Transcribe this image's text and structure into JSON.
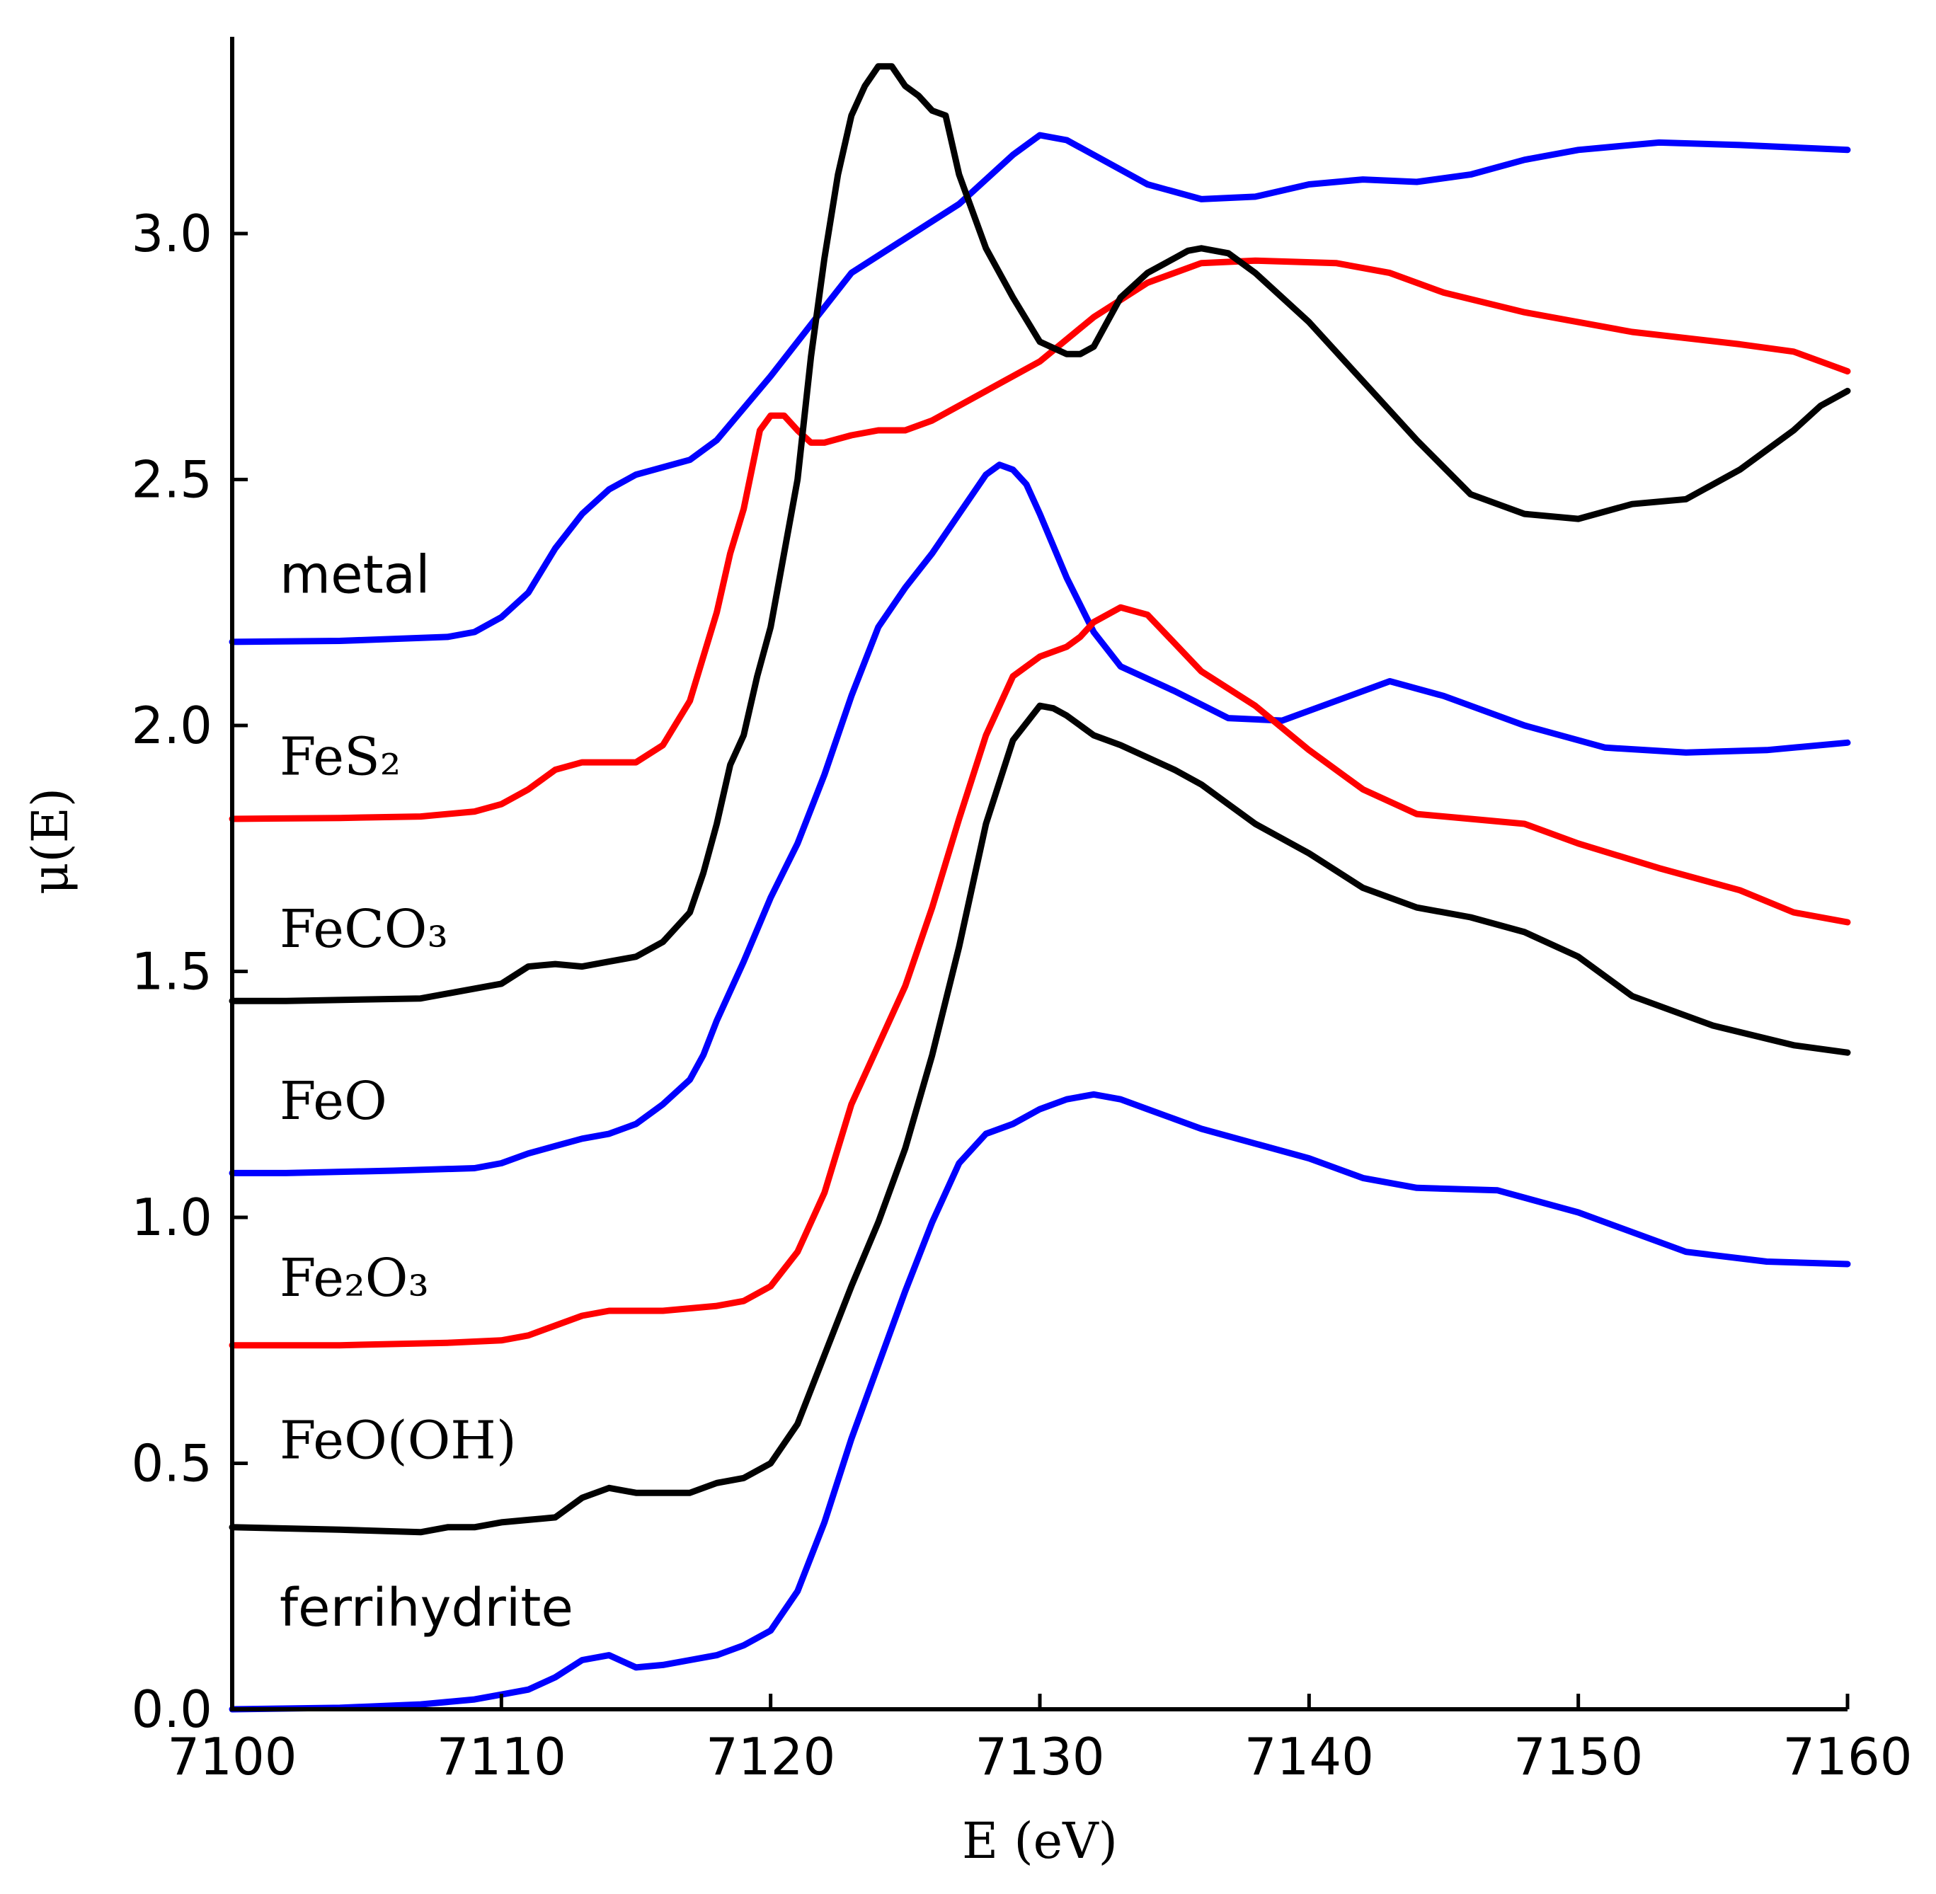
{
  "chart_data": {
    "type": "line",
    "xlabel": "E (eV)",
    "ylabel": "μ(E)",
    "xlim": [
      7100,
      7160
    ],
    "ylim": [
      0,
      3.4
    ],
    "xticks": [
      7100,
      7110,
      7120,
      7130,
      7140,
      7150,
      7160
    ],
    "yticks": [
      0.0,
      0.5,
      1.0,
      1.5,
      2.0,
      2.5,
      3.0
    ],
    "xtick_labels": [
      "7100",
      "7110",
      "7120",
      "7130",
      "7140",
      "7150",
      "7160"
    ],
    "ytick_labels": [
      "0.0",
      "0.5",
      "1.0",
      "1.5",
      "2.0",
      "2.5",
      "3.0"
    ],
    "grid": false,
    "legend": "none",
    "series": [
      {
        "name": "metal",
        "color": "#0000ff",
        "label_font": "sans",
        "label_y": 2.27,
        "points": [
          [
            7100,
            2.17
          ],
          [
            7104,
            2.172
          ],
          [
            7108,
            2.18
          ],
          [
            7109,
            2.19
          ],
          [
            7110,
            2.22
          ],
          [
            7111,
            2.27
          ],
          [
            7112,
            2.36
          ],
          [
            7113,
            2.43
          ],
          [
            7114,
            2.48
          ],
          [
            7115,
            2.51
          ],
          [
            7117,
            2.54
          ],
          [
            7118,
            2.58
          ],
          [
            7120,
            2.71
          ],
          [
            7122,
            2.85
          ],
          [
            7123,
            2.92
          ],
          [
            7125,
            2.99
          ],
          [
            7127,
            3.06
          ],
          [
            7129,
            3.16
          ],
          [
            7130,
            3.2
          ],
          [
            7131,
            3.19
          ],
          [
            7132,
            3.16
          ],
          [
            7134,
            3.1
          ],
          [
            7136,
            3.07
          ],
          [
            7138,
            3.075
          ],
          [
            7140,
            3.1
          ],
          [
            7142,
            3.11
          ],
          [
            7144,
            3.105
          ],
          [
            7146,
            3.12
          ],
          [
            7148,
            3.15
          ],
          [
            7150,
            3.17
          ],
          [
            7153,
            3.185
          ],
          [
            7156,
            3.18
          ],
          [
            7160,
            3.17
          ]
        ]
      },
      {
        "name": "FeS₂",
        "color": "#ff0000",
        "label_font": "serif",
        "label_y": 1.9,
        "points": [
          [
            7100,
            1.81
          ],
          [
            7104,
            1.812
          ],
          [
            7107,
            1.815
          ],
          [
            7109,
            1.825
          ],
          [
            7110,
            1.84
          ],
          [
            7111,
            1.87
          ],
          [
            7112,
            1.91
          ],
          [
            7113,
            1.925
          ],
          [
            7115,
            1.925
          ],
          [
            7116,
            1.96
          ],
          [
            7117,
            2.05
          ],
          [
            7118,
            2.23
          ],
          [
            7118.5,
            2.35
          ],
          [
            7119,
            2.44
          ],
          [
            7119.6,
            2.6
          ],
          [
            7120,
            2.63
          ],
          [
            7120.5,
            2.63
          ],
          [
            7121,
            2.6
          ],
          [
            7121.5,
            2.575
          ],
          [
            7122,
            2.575
          ],
          [
            7123,
            2.59
          ],
          [
            7124,
            2.6
          ],
          [
            7125,
            2.6
          ],
          [
            7126,
            2.62
          ],
          [
            7128,
            2.68
          ],
          [
            7130,
            2.74
          ],
          [
            7132,
            2.83
          ],
          [
            7134,
            2.9
          ],
          [
            7136,
            2.94
          ],
          [
            7138,
            2.945
          ],
          [
            7141,
            2.94
          ],
          [
            7143,
            2.92
          ],
          [
            7145,
            2.88
          ],
          [
            7148,
            2.84
          ],
          [
            7152,
            2.8
          ],
          [
            7156,
            2.775
          ],
          [
            7158,
            2.76
          ],
          [
            7160,
            2.72
          ]
        ]
      },
      {
        "name": "FeCO₃",
        "color": "#000000",
        "label_font": "serif",
        "label_y": 1.55,
        "points": [
          [
            7100,
            1.44
          ],
          [
            7102,
            1.44
          ],
          [
            7107,
            1.445
          ],
          [
            7110,
            1.475
          ],
          [
            7111,
            1.51
          ],
          [
            7112,
            1.515
          ],
          [
            7113,
            1.51
          ],
          [
            7114,
            1.52
          ],
          [
            7115,
            1.53
          ],
          [
            7116,
            1.56
          ],
          [
            7117,
            1.62
          ],
          [
            7117.5,
            1.7
          ],
          [
            7118,
            1.8
          ],
          [
            7118.5,
            1.92
          ],
          [
            7119,
            1.98
          ],
          [
            7119.5,
            2.1
          ],
          [
            7120,
            2.2
          ],
          [
            7121,
            2.5
          ],
          [
            7121.5,
            2.75
          ],
          [
            7122,
            2.95
          ],
          [
            7122.5,
            3.12
          ],
          [
            7123,
            3.24
          ],
          [
            7123.5,
            3.3
          ],
          [
            7124,
            3.34
          ],
          [
            7124.5,
            3.34
          ],
          [
            7125,
            3.3
          ],
          [
            7125.5,
            3.28
          ],
          [
            7126,
            3.25
          ],
          [
            7126.5,
            3.24
          ],
          [
            7127,
            3.12
          ],
          [
            7128,
            2.97
          ],
          [
            7129,
            2.87
          ],
          [
            7130,
            2.78
          ],
          [
            7131,
            2.755
          ],
          [
            7131.5,
            2.755
          ],
          [
            7132,
            2.77
          ],
          [
            7133,
            2.87
          ],
          [
            7134,
            2.92
          ],
          [
            7135,
            2.95
          ],
          [
            7135.5,
            2.965
          ],
          [
            7136,
            2.97
          ],
          [
            7137,
            2.96
          ],
          [
            7138,
            2.92
          ],
          [
            7140,
            2.82
          ],
          [
            7142,
            2.7
          ],
          [
            7144,
            2.58
          ],
          [
            7146,
            2.47
          ],
          [
            7148,
            2.43
          ],
          [
            7150,
            2.42
          ],
          [
            7152,
            2.45
          ],
          [
            7154,
            2.46
          ],
          [
            7156,
            2.52
          ],
          [
            7158,
            2.6
          ],
          [
            7159,
            2.65
          ],
          [
            7160,
            2.68
          ]
        ]
      },
      {
        "name": "FeO",
        "color": "#0000ff",
        "label_font": "serif",
        "label_y": 1.2,
        "points": [
          [
            7100,
            1.09
          ],
          [
            7102,
            1.09
          ],
          [
            7106,
            1.095
          ],
          [
            7109,
            1.1
          ],
          [
            7110,
            1.11
          ],
          [
            7111,
            1.13
          ],
          [
            7112,
            1.145
          ],
          [
            7113,
            1.16
          ],
          [
            7114,
            1.17
          ],
          [
            7115,
            1.19
          ],
          [
            7116,
            1.23
          ],
          [
            7117,
            1.28
          ],
          [
            7117.5,
            1.33
          ],
          [
            7118,
            1.4
          ],
          [
            7119,
            1.52
          ],
          [
            7120,
            1.65
          ],
          [
            7121,
            1.76
          ],
          [
            7122,
            1.9
          ],
          [
            7123,
            2.06
          ],
          [
            7124,
            2.2
          ],
          [
            7125,
            2.28
          ],
          [
            7126,
            2.35
          ],
          [
            7127,
            2.43
          ],
          [
            7128,
            2.51
          ],
          [
            7128.5,
            2.53
          ],
          [
            7129,
            2.52
          ],
          [
            7129.5,
            2.49
          ],
          [
            7130,
            2.43
          ],
          [
            7131,
            2.3
          ],
          [
            7132,
            2.19
          ],
          [
            7133,
            2.12
          ],
          [
            7135,
            2.07
          ],
          [
            7137,
            2.015
          ],
          [
            7139,
            2.01
          ],
          [
            7141,
            2.05
          ],
          [
            7143,
            2.09
          ],
          [
            7145,
            2.06
          ],
          [
            7148,
            2.0
          ],
          [
            7151,
            1.955
          ],
          [
            7154,
            1.945
          ],
          [
            7157,
            1.95
          ],
          [
            7160,
            1.965
          ]
        ]
      },
      {
        "name": "Fe₂O₃",
        "color": "#ff0000",
        "label_font": "serif",
        "label_y": 0.84,
        "points": [
          [
            7100,
            0.74
          ],
          [
            7104,
            0.74
          ],
          [
            7108,
            0.745
          ],
          [
            7110,
            0.75
          ],
          [
            7111,
            0.76
          ],
          [
            7112,
            0.78
          ],
          [
            7113,
            0.8
          ],
          [
            7114,
            0.81
          ],
          [
            7116,
            0.81
          ],
          [
            7118,
            0.82
          ],
          [
            7119,
            0.83
          ],
          [
            7120,
            0.86
          ],
          [
            7121,
            0.93
          ],
          [
            7122,
            1.05
          ],
          [
            7123,
            1.23
          ],
          [
            7124,
            1.35
          ],
          [
            7125,
            1.47
          ],
          [
            7126,
            1.63
          ],
          [
            7127,
            1.81
          ],
          [
            7128,
            1.98
          ],
          [
            7129,
            2.1
          ],
          [
            7130,
            2.14
          ],
          [
            7131,
            2.16
          ],
          [
            7131.5,
            2.18
          ],
          [
            7132,
            2.21
          ],
          [
            7133,
            2.24
          ],
          [
            7134,
            2.225
          ],
          [
            7136,
            2.11
          ],
          [
            7138,
            2.04
          ],
          [
            7140,
            1.95
          ],
          [
            7142,
            1.87
          ],
          [
            7144,
            1.82
          ],
          [
            7146,
            1.81
          ],
          [
            7148,
            1.8
          ],
          [
            7150,
            1.76
          ],
          [
            7153,
            1.71
          ],
          [
            7156,
            1.665
          ],
          [
            7158,
            1.62
          ],
          [
            7160,
            1.6
          ]
        ]
      },
      {
        "name": "FeO(OH)",
        "color": "#000000",
        "label_font": "serif",
        "label_y": 0.51,
        "points": [
          [
            7100,
            0.37
          ],
          [
            7104,
            0.365
          ],
          [
            7107,
            0.36
          ],
          [
            7108,
            0.37
          ],
          [
            7109,
            0.37
          ],
          [
            7110,
            0.38
          ],
          [
            7111,
            0.385
          ],
          [
            7112,
            0.39
          ],
          [
            7113,
            0.43
          ],
          [
            7114,
            0.45
          ],
          [
            7115,
            0.44
          ],
          [
            7116,
            0.44
          ],
          [
            7117,
            0.44
          ],
          [
            7118,
            0.46
          ],
          [
            7119,
            0.47
          ],
          [
            7120,
            0.5
          ],
          [
            7121,
            0.58
          ],
          [
            7122,
            0.72
          ],
          [
            7123,
            0.86
          ],
          [
            7124,
            0.99
          ],
          [
            7125,
            1.14
          ],
          [
            7126,
            1.33
          ],
          [
            7127,
            1.55
          ],
          [
            7128,
            1.8
          ],
          [
            7129,
            1.97
          ],
          [
            7130,
            2.04
          ],
          [
            7130.5,
            2.035
          ],
          [
            7131,
            2.02
          ],
          [
            7132,
            1.98
          ],
          [
            7133,
            1.96
          ],
          [
            7134,
            1.935
          ],
          [
            7135,
            1.91
          ],
          [
            7136,
            1.88
          ],
          [
            7137,
            1.84
          ],
          [
            7138,
            1.8
          ],
          [
            7140,
            1.74
          ],
          [
            7142,
            1.67
          ],
          [
            7144,
            1.63
          ],
          [
            7146,
            1.61
          ],
          [
            7148,
            1.58
          ],
          [
            7150,
            1.53
          ],
          [
            7152,
            1.45
          ],
          [
            7155,
            1.39
          ],
          [
            7158,
            1.35
          ],
          [
            7160,
            1.335
          ]
        ]
      },
      {
        "name": "ferrihydrite",
        "color": "#0000ff",
        "label_font": "sans",
        "label_y": 0.17,
        "points": [
          [
            7100,
            0.0
          ],
          [
            7104,
            0.003
          ],
          [
            7107,
            0.01
          ],
          [
            7108,
            0.015
          ],
          [
            7109,
            0.02
          ],
          [
            7110,
            0.03
          ],
          [
            7111,
            0.04
          ],
          [
            7112,
            0.065
          ],
          [
            7113,
            0.1
          ],
          [
            7114,
            0.11
          ],
          [
            7115,
            0.085
          ],
          [
            7116,
            0.09
          ],
          [
            7117,
            0.1
          ],
          [
            7118,
            0.11
          ],
          [
            7119,
            0.13
          ],
          [
            7120,
            0.16
          ],
          [
            7121,
            0.24
          ],
          [
            7122,
            0.38
          ],
          [
            7123,
            0.55
          ],
          [
            7124,
            0.7
          ],
          [
            7125,
            0.85
          ],
          [
            7126,
            0.99
          ],
          [
            7127,
            1.11
          ],
          [
            7128,
            1.17
          ],
          [
            7129,
            1.19
          ],
          [
            7130,
            1.22
          ],
          [
            7131,
            1.24
          ],
          [
            7132,
            1.25
          ],
          [
            7133,
            1.24
          ],
          [
            7134,
            1.22
          ],
          [
            7135,
            1.2
          ],
          [
            7136,
            1.18
          ],
          [
            7138,
            1.15
          ],
          [
            7140,
            1.12
          ],
          [
            7142,
            1.08
          ],
          [
            7144,
            1.06
          ],
          [
            7147,
            1.055
          ],
          [
            7150,
            1.01
          ],
          [
            7154,
            0.93
          ],
          [
            7157,
            0.91
          ],
          [
            7160,
            0.905
          ]
        ]
      }
    ]
  }
}
